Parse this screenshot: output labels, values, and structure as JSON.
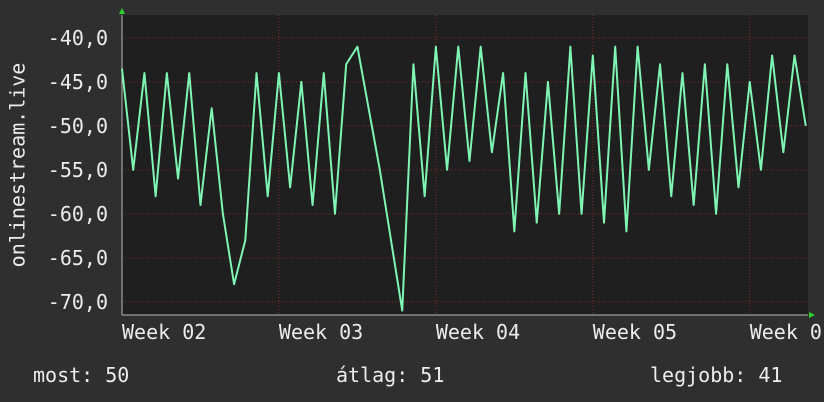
{
  "chart_data": {
    "type": "line",
    "ylabel": "onlinestream.live",
    "x": [
      0,
      0.5,
      1,
      1.5,
      2,
      2.5,
      3,
      3.5,
      4,
      4.5,
      5,
      5.5,
      6,
      6.5,
      7,
      7.5,
      8,
      8.5,
      9,
      9.5,
      10,
      10.5,
      11,
      11.5,
      12,
      12.5,
      13,
      13.5,
      14,
      14.5,
      15,
      15.5,
      16,
      16.5,
      17,
      17.5,
      18,
      18.5,
      19,
      19.5,
      20,
      20.5,
      21,
      21.5,
      22,
      22.5,
      23,
      23.5,
      24,
      24.5,
      25,
      25.5,
      26,
      26.5,
      27,
      27.5,
      28,
      28.5,
      29,
      29.5,
      30,
      30.5
    ],
    "series": [
      {
        "color": "#7ff5b4",
        "values": [
          -43.5,
          -55,
          -44,
          -58,
          -44,
          -56,
          -44,
          -59,
          -48,
          -60,
          -68,
          -63,
          -44,
          -58,
          -44,
          -57,
          -45,
          -59,
          -44,
          -60,
          -43,
          -41,
          -48,
          -55,
          -63,
          -71,
          -43,
          -58,
          -41,
          -55,
          -41,
          -54,
          -41,
          -53,
          -44,
          -62,
          -44,
          -61,
          -45,
          -60,
          -41,
          -60,
          -42,
          -61,
          -41,
          -62,
          -41,
          -55,
          -43,
          -58,
          -44,
          -59,
          -43,
          -60,
          -43,
          -57,
          -45,
          -55,
          -42,
          -53,
          -42,
          -50
        ]
      }
    ],
    "xlim": [
      0,
      30.6
    ],
    "xticks": [
      {
        "value": 0,
        "label": "Week 02"
      },
      {
        "value": 7,
        "label": "Week 03"
      },
      {
        "value": 14,
        "label": "Week 04"
      },
      {
        "value": 21,
        "label": "Week 05"
      },
      {
        "value": 28,
        "label": "Week 0"
      }
    ],
    "ylim": [
      -71.5,
      -37.4
    ],
    "yticks": [
      {
        "value": -40,
        "label": "-40,0"
      },
      {
        "value": -45,
        "label": "-45,0"
      },
      {
        "value": -50,
        "label": "-50,0"
      },
      {
        "value": -55,
        "label": "-55,0"
      },
      {
        "value": -60,
        "label": "-60,0"
      },
      {
        "value": -65,
        "label": "-65,0"
      },
      {
        "value": -70,
        "label": "-70,0"
      }
    ],
    "grid": true,
    "stats": [
      "most: 50",
      "átlag: 51",
      "legjobb: 41"
    ]
  }
}
